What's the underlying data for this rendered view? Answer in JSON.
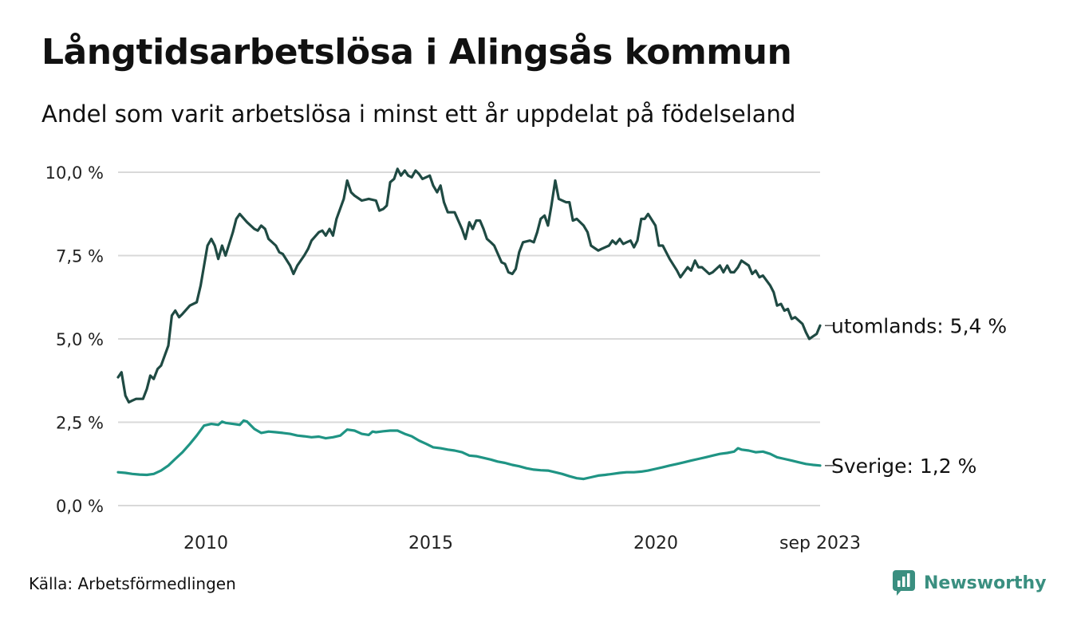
{
  "title": "Långtidsarbetslösa i Alingsås kommun",
  "subtitle": "Andel som varit arbetslösa i minst ett år uppdelat på födelseland",
  "source": "Källa: Arbetsförmedlingen",
  "brand": "Newsworthy",
  "colors": {
    "utomlands": "#1f4a43",
    "sverige": "#1f9484",
    "grid": "#d9d9d9",
    "brand": "#3a8f80"
  },
  "chart_data": {
    "type": "line",
    "title": "Långtidsarbetslösa i Alingsås kommun",
    "subtitle": "Andel som varit arbetslösa i minst ett år uppdelat på födelseland",
    "x_range": [
      2008.0,
      2023.667
    ],
    "x_ticks": [
      {
        "value": 2010,
        "label": "2010"
      },
      {
        "value": 2015,
        "label": "2015"
      },
      {
        "value": 2020,
        "label": "2020"
      },
      {
        "value": 2023.667,
        "label": "sep 2023"
      }
    ],
    "ylim": [
      0,
      10
    ],
    "y_ticks": [
      {
        "value": 0,
        "label": "0,0 %"
      },
      {
        "value": 2.5,
        "label": "2,5 %"
      },
      {
        "value": 5,
        "label": "5,0 %"
      },
      {
        "value": 7.5,
        "label": "7,5 %"
      },
      {
        "value": 10,
        "label": "10,0 %"
      }
    ],
    "grid": true,
    "series": [
      {
        "name": "utomlands",
        "end_label": "utomlands: 5,4 %",
        "points": [
          [
            2008.0,
            3.85
          ],
          [
            2008.08,
            4.0
          ],
          [
            2008.17,
            3.3
          ],
          [
            2008.25,
            3.1
          ],
          [
            2008.33,
            3.15
          ],
          [
            2008.42,
            3.2
          ],
          [
            2008.58,
            3.2
          ],
          [
            2008.67,
            3.5
          ],
          [
            2008.75,
            3.9
          ],
          [
            2008.83,
            3.8
          ],
          [
            2008.92,
            4.1
          ],
          [
            2009.0,
            4.2
          ],
          [
            2009.17,
            4.8
          ],
          [
            2009.25,
            5.7
          ],
          [
            2009.33,
            5.85
          ],
          [
            2009.42,
            5.65
          ],
          [
            2009.5,
            5.75
          ],
          [
            2009.67,
            6.0
          ],
          [
            2009.83,
            6.1
          ],
          [
            2009.92,
            6.6
          ],
          [
            2010.0,
            7.2
          ],
          [
            2010.08,
            7.8
          ],
          [
            2010.17,
            8.0
          ],
          [
            2010.25,
            7.8
          ],
          [
            2010.33,
            7.4
          ],
          [
            2010.42,
            7.8
          ],
          [
            2010.5,
            7.5
          ],
          [
            2010.67,
            8.2
          ],
          [
            2010.75,
            8.6
          ],
          [
            2010.83,
            8.75
          ],
          [
            2011.0,
            8.5
          ],
          [
            2011.17,
            8.3
          ],
          [
            2011.25,
            8.25
          ],
          [
            2011.33,
            8.4
          ],
          [
            2011.42,
            8.3
          ],
          [
            2011.5,
            8.0
          ],
          [
            2011.67,
            7.8
          ],
          [
            2011.75,
            7.6
          ],
          [
            2011.83,
            7.55
          ],
          [
            2012.0,
            7.2
          ],
          [
            2012.08,
            6.95
          ],
          [
            2012.17,
            7.2
          ],
          [
            2012.33,
            7.5
          ],
          [
            2012.42,
            7.7
          ],
          [
            2012.5,
            7.95
          ],
          [
            2012.67,
            8.2
          ],
          [
            2012.75,
            8.25
          ],
          [
            2012.83,
            8.1
          ],
          [
            2012.92,
            8.3
          ],
          [
            2013.0,
            8.1
          ],
          [
            2013.08,
            8.6
          ],
          [
            2013.25,
            9.2
          ],
          [
            2013.33,
            9.75
          ],
          [
            2013.42,
            9.4
          ],
          [
            2013.5,
            9.3
          ],
          [
            2013.67,
            9.15
          ],
          [
            2013.83,
            9.2
          ],
          [
            2014.0,
            9.15
          ],
          [
            2014.08,
            8.85
          ],
          [
            2014.17,
            8.9
          ],
          [
            2014.25,
            9.0
          ],
          [
            2014.33,
            9.7
          ],
          [
            2014.42,
            9.8
          ],
          [
            2014.5,
            10.1
          ],
          [
            2014.58,
            9.9
          ],
          [
            2014.67,
            10.05
          ],
          [
            2014.75,
            9.9
          ],
          [
            2014.83,
            9.85
          ],
          [
            2014.92,
            10.05
          ],
          [
            2015.0,
            9.95
          ],
          [
            2015.08,
            9.8
          ],
          [
            2015.25,
            9.9
          ],
          [
            2015.33,
            9.6
          ],
          [
            2015.42,
            9.4
          ],
          [
            2015.5,
            9.6
          ],
          [
            2015.58,
            9.1
          ],
          [
            2015.67,
            8.8
          ],
          [
            2015.83,
            8.8
          ],
          [
            2016.0,
            8.3
          ],
          [
            2016.08,
            8.0
          ],
          [
            2016.17,
            8.5
          ],
          [
            2016.25,
            8.3
          ],
          [
            2016.33,
            8.55
          ],
          [
            2016.42,
            8.55
          ],
          [
            2016.5,
            8.3
          ],
          [
            2016.58,
            8.0
          ],
          [
            2016.67,
            7.9
          ],
          [
            2016.75,
            7.8
          ],
          [
            2016.92,
            7.3
          ],
          [
            2017.0,
            7.25
          ],
          [
            2017.08,
            7.0
          ],
          [
            2017.17,
            6.95
          ],
          [
            2017.25,
            7.1
          ],
          [
            2017.33,
            7.6
          ],
          [
            2017.42,
            7.9
          ],
          [
            2017.58,
            7.95
          ],
          [
            2017.67,
            7.9
          ],
          [
            2017.75,
            8.2
          ],
          [
            2017.83,
            8.6
          ],
          [
            2017.92,
            8.7
          ],
          [
            2018.0,
            8.4
          ],
          [
            2018.08,
            9.0
          ],
          [
            2018.17,
            9.75
          ],
          [
            2018.25,
            9.2
          ],
          [
            2018.42,
            9.1
          ],
          [
            2018.5,
            9.1
          ],
          [
            2018.58,
            8.55
          ],
          [
            2018.67,
            8.6
          ],
          [
            2018.83,
            8.4
          ],
          [
            2018.92,
            8.2
          ],
          [
            2019.0,
            7.8
          ],
          [
            2019.17,
            7.65
          ],
          [
            2019.25,
            7.7
          ],
          [
            2019.42,
            7.8
          ],
          [
            2019.5,
            7.95
          ],
          [
            2019.58,
            7.85
          ],
          [
            2019.67,
            8.0
          ],
          [
            2019.75,
            7.85
          ],
          [
            2019.83,
            7.9
          ],
          [
            2019.92,
            7.95
          ],
          [
            2020.0,
            7.75
          ],
          [
            2020.08,
            7.95
          ],
          [
            2020.17,
            8.6
          ],
          [
            2020.25,
            8.6
          ],
          [
            2020.33,
            8.75
          ],
          [
            2020.5,
            8.4
          ],
          [
            2020.58,
            7.8
          ],
          [
            2020.67,
            7.8
          ],
          [
            2020.83,
            7.4
          ],
          [
            2021.0,
            7.05
          ],
          [
            2021.08,
            6.85
          ],
          [
            2021.25,
            7.15
          ],
          [
            2021.33,
            7.05
          ],
          [
            2021.42,
            7.35
          ],
          [
            2021.5,
            7.15
          ],
          [
            2021.58,
            7.15
          ],
          [
            2021.75,
            6.95
          ],
          [
            2021.83,
            7.0
          ],
          [
            2022.0,
            7.2
          ],
          [
            2022.08,
            7.0
          ],
          [
            2022.17,
            7.2
          ],
          [
            2022.25,
            7.0
          ],
          [
            2022.33,
            7.0
          ],
          [
            2022.42,
            7.15
          ],
          [
            2022.5,
            7.35
          ],
          [
            2022.67,
            7.2
          ],
          [
            2022.75,
            6.95
          ],
          [
            2022.83,
            7.05
          ],
          [
            2022.92,
            6.85
          ],
          [
            2023.0,
            6.9
          ],
          [
            2023.17,
            6.6
          ],
          [
            2023.25,
            6.4
          ],
          [
            2023.33,
            6.0
          ],
          [
            2023.42,
            6.05
          ],
          [
            2023.5,
            5.85
          ],
          [
            2023.58,
            5.9
          ],
          [
            2023.67,
            5.6
          ],
          [
            2023.75,
            5.65
          ],
          [
            2023.92,
            5.45
          ],
          [
            2024.0,
            5.2
          ],
          [
            2024.08,
            5.0
          ],
          [
            2024.25,
            5.15
          ],
          [
            2024.33,
            5.4
          ]
        ]
      },
      {
        "name": "Sverige",
        "end_label": "Sverige: 1,2 %",
        "points": [
          [
            2008.0,
            1.0
          ],
          [
            2008.17,
            0.98
          ],
          [
            2008.33,
            0.95
          ],
          [
            2008.5,
            0.93
          ],
          [
            2008.67,
            0.92
          ],
          [
            2008.83,
            0.95
          ],
          [
            2009.0,
            1.05
          ],
          [
            2009.17,
            1.2
          ],
          [
            2009.33,
            1.4
          ],
          [
            2009.5,
            1.6
          ],
          [
            2009.67,
            1.85
          ],
          [
            2009.83,
            2.1
          ],
          [
            2010.0,
            2.4
          ],
          [
            2010.17,
            2.45
          ],
          [
            2010.33,
            2.42
          ],
          [
            2010.42,
            2.52
          ],
          [
            2010.5,
            2.48
          ],
          [
            2010.67,
            2.45
          ],
          [
            2010.83,
            2.42
          ],
          [
            2010.92,
            2.55
          ],
          [
            2011.0,
            2.52
          ],
          [
            2011.17,
            2.3
          ],
          [
            2011.33,
            2.18
          ],
          [
            2011.5,
            2.22
          ],
          [
            2011.67,
            2.2
          ],
          [
            2011.83,
            2.18
          ],
          [
            2012.0,
            2.15
          ],
          [
            2012.17,
            2.1
          ],
          [
            2012.33,
            2.08
          ],
          [
            2012.5,
            2.05
          ],
          [
            2012.67,
            2.07
          ],
          [
            2012.83,
            2.02
          ],
          [
            2013.0,
            2.05
          ],
          [
            2013.17,
            2.1
          ],
          [
            2013.33,
            2.28
          ],
          [
            2013.5,
            2.25
          ],
          [
            2013.67,
            2.15
          ],
          [
            2013.83,
            2.12
          ],
          [
            2013.92,
            2.22
          ],
          [
            2014.0,
            2.2
          ],
          [
            2014.17,
            2.23
          ],
          [
            2014.33,
            2.25
          ],
          [
            2014.5,
            2.25
          ],
          [
            2014.67,
            2.15
          ],
          [
            2014.83,
            2.08
          ],
          [
            2015.0,
            1.95
          ],
          [
            2015.17,
            1.85
          ],
          [
            2015.33,
            1.75
          ],
          [
            2015.5,
            1.72
          ],
          [
            2015.67,
            1.68
          ],
          [
            2015.83,
            1.65
          ],
          [
            2016.0,
            1.6
          ],
          [
            2016.17,
            1.5
          ],
          [
            2016.33,
            1.48
          ],
          [
            2016.5,
            1.43
          ],
          [
            2016.67,
            1.38
          ],
          [
            2016.83,
            1.32
          ],
          [
            2017.0,
            1.28
          ],
          [
            2017.17,
            1.22
          ],
          [
            2017.33,
            1.18
          ],
          [
            2017.5,
            1.12
          ],
          [
            2017.67,
            1.08
          ],
          [
            2017.83,
            1.06
          ],
          [
            2018.0,
            1.05
          ],
          [
            2018.17,
            1.0
          ],
          [
            2018.33,
            0.95
          ],
          [
            2018.5,
            0.88
          ],
          [
            2018.67,
            0.82
          ],
          [
            2018.83,
            0.8
          ],
          [
            2019.0,
            0.85
          ],
          [
            2019.17,
            0.9
          ],
          [
            2019.33,
            0.92
          ],
          [
            2019.5,
            0.95
          ],
          [
            2019.67,
            0.98
          ],
          [
            2019.83,
            1.0
          ],
          [
            2020.0,
            1.0
          ],
          [
            2020.17,
            1.02
          ],
          [
            2020.33,
            1.05
          ],
          [
            2020.5,
            1.1
          ],
          [
            2020.67,
            1.15
          ],
          [
            2020.83,
            1.2
          ],
          [
            2021.0,
            1.25
          ],
          [
            2021.17,
            1.3
          ],
          [
            2021.33,
            1.35
          ],
          [
            2021.5,
            1.4
          ],
          [
            2021.67,
            1.45
          ],
          [
            2021.83,
            1.5
          ],
          [
            2022.0,
            1.55
          ],
          [
            2022.17,
            1.58
          ],
          [
            2022.33,
            1.62
          ],
          [
            2022.42,
            1.72
          ],
          [
            2022.5,
            1.68
          ],
          [
            2022.67,
            1.65
          ],
          [
            2022.83,
            1.6
          ],
          [
            2023.0,
            1.62
          ],
          [
            2023.17,
            1.55
          ],
          [
            2023.33,
            1.45
          ],
          [
            2023.5,
            1.4
          ],
          [
            2023.67,
            1.35
          ],
          [
            2023.83,
            1.3
          ],
          [
            2024.0,
            1.25
          ],
          [
            2024.17,
            1.22
          ],
          [
            2024.33,
            1.2
          ]
        ]
      }
    ]
  }
}
